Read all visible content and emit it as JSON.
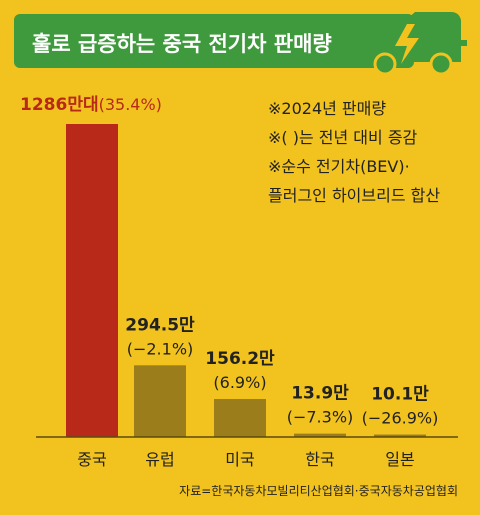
{
  "banner": {
    "title": "훌로 급증하는 중국 전기차 판매량"
  },
  "notes": [
    "※2024년 판매량",
    "※(  )는 전년 대비 증감",
    "※순수 전기차(BEV)·",
    "플러그인 하이브리드 합산"
  ],
  "source": "자료=한국자동차모빌리티산업협회·중국자동차공업협회",
  "colors": {
    "background": "#f2c31f",
    "banner": "#3e9a3c",
    "china_bar": "#b8291a",
    "other_bar": "#9c7d1c",
    "china_label": "#b8291a"
  },
  "chart_data": {
    "type": "bar",
    "categories": [
      "중국",
      "유럽",
      "미국",
      "한국",
      "일본"
    ],
    "values": [
      1286,
      294.5,
      156.2,
      13.9,
      10.1
    ],
    "value_labels": [
      "1286만대",
      "294.5만",
      "156.2만",
      "13.9만",
      "10.1만"
    ],
    "change_labels": [
      "(35.4%)",
      "(−2.1%)",
      "(6.9%)",
      "(−7.3%)",
      "(−26.9%)"
    ],
    "unit": "만대",
    "ylim": [
      0,
      1286
    ],
    "grid": false,
    "legend": "none"
  }
}
